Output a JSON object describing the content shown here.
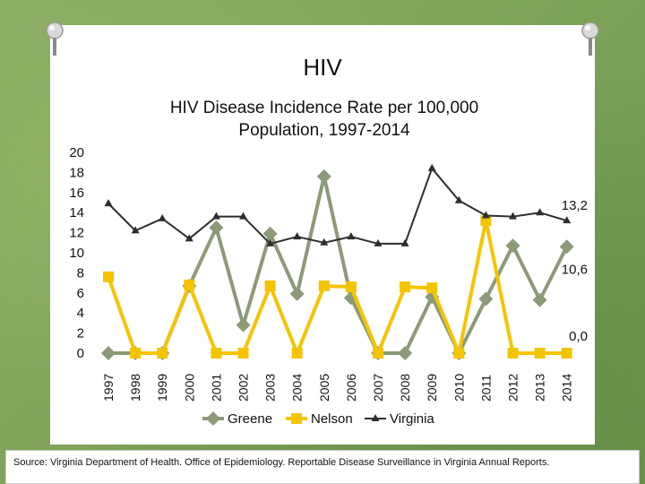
{
  "slide": {
    "title": "HIV",
    "source": "Source: Virginia Department of Health. Office of Epidemiology. Reportable Disease Surveillance in Virginia Annual Reports."
  },
  "colors": {
    "background": "#7fa35a",
    "greene": "#8c9a78",
    "nelson": "#f5c400",
    "virginia": "#2e2e2e"
  },
  "chart_data": {
    "type": "line",
    "title": "HIV Disease Incidence Rate per 100,000 Population, 1997-2014",
    "title_lines": [
      "HIV Disease Incidence Rate per 100,000",
      "Population, 1997-2014"
    ],
    "categories": [
      "1997",
      "1998",
      "1999",
      "2000",
      "2001",
      "2002",
      "2003",
      "2004",
      "2005",
      "2006",
      "2007",
      "2008",
      "2009",
      "2010",
      "2011",
      "2012",
      "2013",
      "2014"
    ],
    "ylim": [
      0,
      20
    ],
    "yticks": [
      0,
      2,
      4,
      6,
      8,
      10,
      12,
      14,
      16,
      18,
      20
    ],
    "grid": false,
    "legend_position": "bottom",
    "series": [
      {
        "name": "Greene",
        "color": "#8c9a78",
        "marker": "diamond",
        "values": [
          0,
          0,
          0,
          6.7,
          12.5,
          2.8,
          11.9,
          5.9,
          17.6,
          5.5,
          0,
          0,
          5.6,
          0,
          5.4,
          10.7,
          5.3,
          10.6
        ],
        "end_label": "10,6"
      },
      {
        "name": "Nelson",
        "color": "#f5c400",
        "marker": "square",
        "values": [
          7.6,
          0,
          0,
          6.8,
          0,
          0,
          6.7,
          0,
          6.7,
          6.6,
          0,
          6.6,
          6.5,
          0,
          13.2,
          0,
          0,
          0
        ],
        "end_label": "0,0"
      },
      {
        "name": "Virginia",
        "color": "#2e2e2e",
        "marker": "triangle",
        "values": [
          14.9,
          12.2,
          13.4,
          11.4,
          13.6,
          13.6,
          10.9,
          11.6,
          11.0,
          11.6,
          10.9,
          10.9,
          18.4,
          15.2,
          13.7,
          13.6,
          14.0,
          13.2
        ],
        "end_label": "13,2"
      }
    ]
  }
}
